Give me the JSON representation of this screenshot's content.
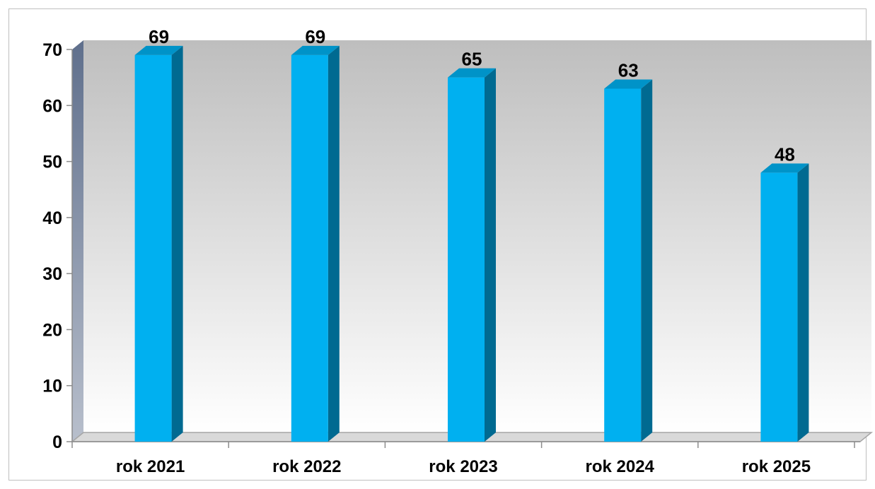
{
  "chart_data": {
    "type": "bar",
    "categories": [
      "rok 2021",
      "rok 2022",
      "rok 2023",
      "rok 2024",
      "rok 2025"
    ],
    "values": [
      69,
      69,
      65,
      63,
      48
    ],
    "data_labels": [
      "69",
      "69",
      "65",
      "63",
      "48"
    ],
    "title": "",
    "xlabel": "",
    "ylabel": "",
    "ylim": [
      0,
      70
    ],
    "yticks": [
      "0",
      "10",
      "20",
      "30",
      "40",
      "50",
      "60",
      "70"
    ],
    "grid": false,
    "legend": "none",
    "style": "3d-column",
    "colors": {
      "bar_front": "#00b0f0",
      "bar_side": "#006a91",
      "bar_top": "#0093c8",
      "wall_top": "#bebebe",
      "wall_bottom": "#ffffff",
      "side_wall": "#7f8ea8",
      "floor": "#d9d9d9"
    }
  }
}
